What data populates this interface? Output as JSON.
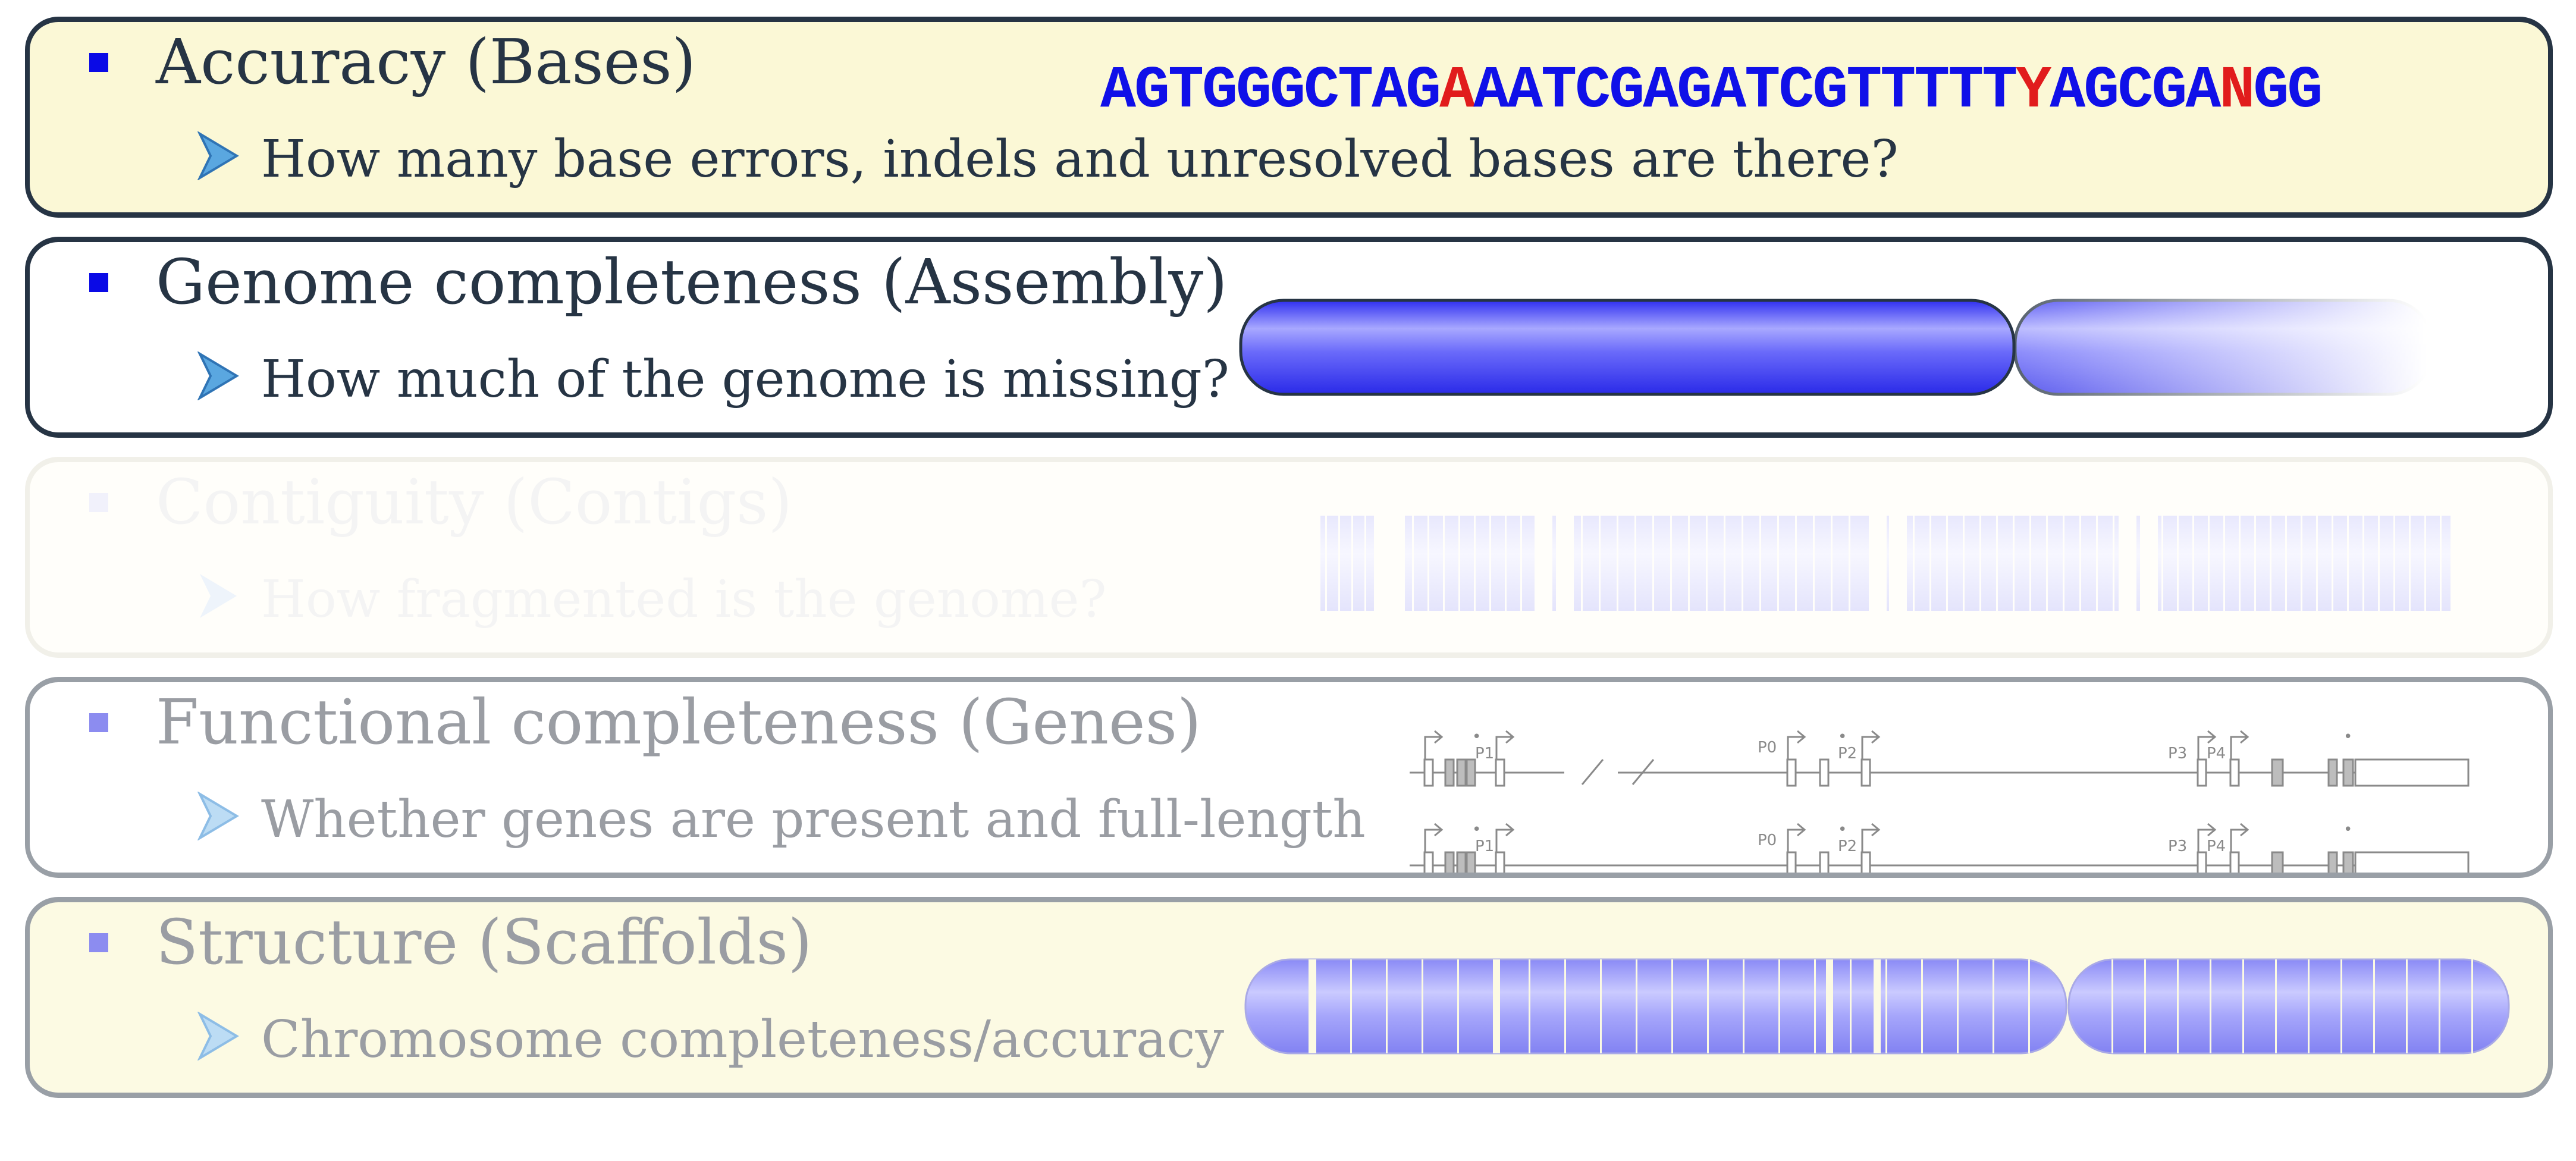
{
  "colors": {
    "dark_border": "#263444",
    "accent_blue": "#1010e8",
    "error_red": "#e11c1c",
    "highlight_fill": "#fbf8d6"
  },
  "icons": {
    "bullet": "square-bullet-icon",
    "sub_bullet": "arrowhead-bullet-icon"
  },
  "panels": [
    {
      "title": "Accuracy (Bases)",
      "question": "How many base errors, indels and unresolved bases are there?"
    },
    {
      "title": "Genome completeness (Assembly)",
      "question": "How much of the genome is missing?"
    },
    {
      "title": "Contiguity (Contigs)",
      "question": "How fragmented is the genome?"
    },
    {
      "title": "Functional completeness (Genes)",
      "question": "Whether genes are present and full-length"
    },
    {
      "title": "Structure (Scaffolds)",
      "question": "Chromosome completeness/accuracy"
    }
  ],
  "sequence": {
    "part1": "AGTGGGCTAG",
    "err1": "A",
    "part2": "AATCGAGATCGTTTTT",
    "err2": "Y",
    "part3": "AGCGA",
    "err3": "N",
    "part4": "GG"
  },
  "gene_labels": {
    "p0": "P0",
    "p1": "P1",
    "p2": "P2",
    "p3": "P3",
    "p4": "P4"
  }
}
